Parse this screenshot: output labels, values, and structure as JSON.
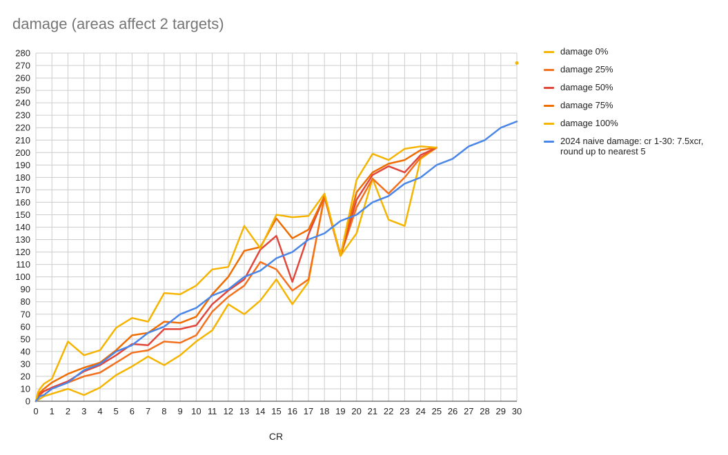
{
  "chart_data": {
    "type": "line",
    "title": "damage (areas affect 2 targets)",
    "xlabel": "CR",
    "ylabel": "",
    "xlim": [
      0,
      30
    ],
    "ylim": [
      0,
      280
    ],
    "y_ticks": [
      0,
      10,
      20,
      30,
      40,
      50,
      60,
      70,
      80,
      90,
      100,
      110,
      120,
      130,
      140,
      150,
      160,
      170,
      180,
      190,
      200,
      210,
      220,
      230,
      240,
      250,
      260,
      270,
      280
    ],
    "x_ticks": [
      0,
      1,
      2,
      3,
      4,
      5,
      6,
      7,
      8,
      9,
      10,
      11,
      12,
      13,
      14,
      15,
      16,
      17,
      18,
      19,
      20,
      21,
      22,
      23,
      24,
      25,
      26,
      27,
      28,
      29,
      30
    ],
    "grid": true,
    "legend_position": "right",
    "x": [
      0,
      0.125,
      0.25,
      0.5,
      1,
      2,
      3,
      4,
      5,
      6,
      7,
      8,
      9,
      10,
      11,
      12,
      13,
      14,
      15,
      16,
      17,
      18,
      19,
      20,
      21,
      22,
      23,
      24,
      25
    ],
    "series": [
      {
        "name": "damage 0%",
        "color": "#f4b400",
        "values": [
          0,
          1,
          2,
          4,
          6,
          10,
          5,
          11,
          21,
          28,
          36,
          29,
          37,
          48,
          57,
          78,
          70,
          81,
          98,
          78,
          96,
          166,
          117,
          135,
          179,
          146,
          141,
          195,
          204
        ]
      },
      {
        "name": "damage 25%",
        "color": "#f46f1b",
        "values": [
          0,
          3,
          5,
          8,
          11,
          15,
          20,
          23,
          31,
          39,
          41,
          48,
          47,
          53,
          72,
          84,
          93,
          112,
          106,
          89,
          98,
          164,
          117,
          156,
          179,
          167,
          180,
          196,
          204
        ]
      },
      {
        "name": "damage 50%",
        "color": "#e0463a",
        "values": [
          0,
          4,
          6,
          8,
          11,
          16,
          24,
          29,
          37,
          46,
          45,
          58,
          58,
          61,
          78,
          89,
          98,
          122,
          133,
          96,
          134,
          165,
          117,
          162,
          182,
          189,
          184,
          198,
          204
        ]
      },
      {
        "name": "damage 75%",
        "color": "#ef6c00",
        "values": [
          0,
          5,
          7,
          10,
          15,
          22,
          27,
          31,
          41,
          53,
          55,
          64,
          63,
          68,
          86,
          100,
          121,
          124,
          147,
          131,
          138,
          165,
          118,
          168,
          184,
          191,
          194,
          202,
          204
        ]
      },
      {
        "name": "damage 100%",
        "color": "#f4b400",
        "values": [
          0,
          7,
          10,
          14,
          18,
          48,
          37,
          41,
          59,
          67,
          64,
          87,
          86,
          93,
          106,
          108,
          141,
          123,
          150,
          148,
          149,
          167,
          117,
          178,
          199,
          194,
          203,
          205,
          204
        ]
      },
      {
        "name": "2024 naive damage: cr 1-30: 7.5xcr, round up to nearest 5",
        "color": "#4a86e8",
        "x": [
          0,
          0.125,
          0.25,
          0.5,
          1,
          2,
          3,
          4,
          5,
          6,
          7,
          8,
          9,
          10,
          11,
          12,
          13,
          14,
          15,
          16,
          17,
          18,
          19,
          20,
          21,
          22,
          23,
          24,
          25,
          26,
          27,
          28,
          29,
          30
        ],
        "values": [
          0,
          2,
          4,
          5,
          10,
          15,
          25,
          30,
          40,
          45,
          55,
          60,
          70,
          75,
          85,
          90,
          100,
          105,
          115,
          120,
          130,
          135,
          145,
          150,
          160,
          165,
          175,
          180,
          190,
          195,
          205,
          210,
          220,
          225
        ]
      }
    ],
    "annotations": [
      {
        "type": "point",
        "x": 30,
        "y": 272,
        "color": "#f4b400"
      }
    ]
  }
}
